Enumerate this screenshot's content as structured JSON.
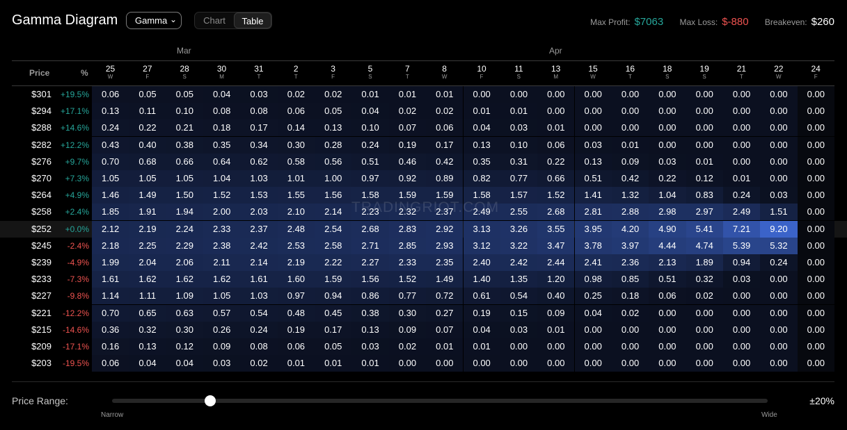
{
  "header": {
    "title": "Gamma Diagram",
    "metric_select": "Gamma",
    "view_tabs": [
      "Chart",
      "Table"
    ],
    "active_view": "Table",
    "max_profit_label": "Max Profit:",
    "max_profit": "$7063",
    "max_loss_label": "Max Loss:",
    "max_loss": "$-880",
    "breakeven_label": "Breakeven:",
    "breakeven": "$260"
  },
  "table": {
    "price_header": "Price",
    "pct_header": "%",
    "months": [
      "Mar",
      "Apr"
    ],
    "dates": [
      {
        "d": "25",
        "w": "W"
      },
      {
        "d": "27",
        "w": "F"
      },
      {
        "d": "28",
        "w": "S"
      },
      {
        "d": "30",
        "w": "M"
      },
      {
        "d": "31",
        "w": "T"
      },
      {
        "d": "2",
        "w": "T"
      },
      {
        "d": "3",
        "w": "F"
      },
      {
        "d": "5",
        "w": "S"
      },
      {
        "d": "7",
        "w": "T"
      },
      {
        "d": "8",
        "w": "W"
      },
      {
        "d": "10",
        "w": "F"
      },
      {
        "d": "11",
        "w": "S"
      },
      {
        "d": "13",
        "w": "M"
      },
      {
        "d": "15",
        "w": "W"
      },
      {
        "d": "16",
        "w": "T"
      },
      {
        "d": "18",
        "w": "S"
      },
      {
        "d": "19",
        "w": "S"
      },
      {
        "d": "21",
        "w": "T"
      },
      {
        "d": "22",
        "w": "W"
      },
      {
        "d": "24",
        "w": "F"
      }
    ],
    "current_price_row": 8,
    "rows": [
      {
        "price": "$301",
        "pct": "+19.5%",
        "values": [
          "0.06",
          "0.05",
          "0.05",
          "0.04",
          "0.03",
          "0.02",
          "0.02",
          "0.01",
          "0.01",
          "0.01",
          "0.00",
          "0.00",
          "0.00",
          "0.00",
          "0.00",
          "0.00",
          "0.00",
          "0.00",
          "0.00",
          "0.00"
        ]
      },
      {
        "price": "$294",
        "pct": "+17.1%",
        "values": [
          "0.13",
          "0.11",
          "0.10",
          "0.08",
          "0.08",
          "0.06",
          "0.05",
          "0.04",
          "0.02",
          "0.02",
          "0.01",
          "0.01",
          "0.00",
          "0.00",
          "0.00",
          "0.00",
          "0.00",
          "0.00",
          "0.00",
          "0.00"
        ]
      },
      {
        "price": "$288",
        "pct": "+14.6%",
        "values": [
          "0.24",
          "0.22",
          "0.21",
          "0.18",
          "0.17",
          "0.14",
          "0.13",
          "0.10",
          "0.07",
          "0.06",
          "0.04",
          "0.03",
          "0.01",
          "0.00",
          "0.00",
          "0.00",
          "0.00",
          "0.00",
          "0.00",
          "0.00"
        ]
      },
      {
        "price": "$282",
        "pct": "+12.2%",
        "values": [
          "0.43",
          "0.40",
          "0.38",
          "0.35",
          "0.34",
          "0.30",
          "0.28",
          "0.24",
          "0.19",
          "0.17",
          "0.13",
          "0.10",
          "0.06",
          "0.03",
          "0.01",
          "0.00",
          "0.00",
          "0.00",
          "0.00",
          "0.00"
        ]
      },
      {
        "price": "$276",
        "pct": "+9.7%",
        "values": [
          "0.70",
          "0.68",
          "0.66",
          "0.64",
          "0.62",
          "0.58",
          "0.56",
          "0.51",
          "0.46",
          "0.42",
          "0.35",
          "0.31",
          "0.22",
          "0.13",
          "0.09",
          "0.03",
          "0.01",
          "0.00",
          "0.00",
          "0.00"
        ]
      },
      {
        "price": "$270",
        "pct": "+7.3%",
        "values": [
          "1.05",
          "1.05",
          "1.05",
          "1.04",
          "1.03",
          "1.01",
          "1.00",
          "0.97",
          "0.92",
          "0.89",
          "0.82",
          "0.77",
          "0.66",
          "0.51",
          "0.42",
          "0.22",
          "0.12",
          "0.01",
          "0.00",
          "0.00"
        ]
      },
      {
        "price": "$264",
        "pct": "+4.9%",
        "values": [
          "1.46",
          "1.49",
          "1.50",
          "1.52",
          "1.53",
          "1.55",
          "1.56",
          "1.58",
          "1.59",
          "1.59",
          "1.58",
          "1.57",
          "1.52",
          "1.41",
          "1.32",
          "1.04",
          "0.83",
          "0.24",
          "0.03",
          "0.00"
        ]
      },
      {
        "price": "$258",
        "pct": "+2.4%",
        "values": [
          "1.85",
          "1.91",
          "1.94",
          "2.00",
          "2.03",
          "2.10",
          "2.14",
          "2.23",
          "2.32",
          "2.37",
          "2.49",
          "2.55",
          "2.68",
          "2.81",
          "2.88",
          "2.98",
          "2.97",
          "2.49",
          "1.51",
          "0.00"
        ]
      },
      {
        "price": "$252",
        "pct": "+0.0%",
        "values": [
          "2.12",
          "2.19",
          "2.24",
          "2.33",
          "2.37",
          "2.48",
          "2.54",
          "2.68",
          "2.83",
          "2.92",
          "3.13",
          "3.26",
          "3.55",
          "3.95",
          "4.20",
          "4.90",
          "5.41",
          "7.21",
          "9.20",
          "0.00"
        ]
      },
      {
        "price": "$245",
        "pct": "-2.4%",
        "values": [
          "2.18",
          "2.25",
          "2.29",
          "2.38",
          "2.42",
          "2.53",
          "2.58",
          "2.71",
          "2.85",
          "2.93",
          "3.12",
          "3.22",
          "3.47",
          "3.78",
          "3.97",
          "4.44",
          "4.74",
          "5.39",
          "5.32",
          "0.00"
        ]
      },
      {
        "price": "$239",
        "pct": "-4.9%",
        "values": [
          "1.99",
          "2.04",
          "2.06",
          "2.11",
          "2.14",
          "2.19",
          "2.22",
          "2.27",
          "2.33",
          "2.35",
          "2.40",
          "2.42",
          "2.44",
          "2.41",
          "2.36",
          "2.13",
          "1.89",
          "0.94",
          "0.24",
          "0.00"
        ]
      },
      {
        "price": "$233",
        "pct": "-7.3%",
        "values": [
          "1.61",
          "1.62",
          "1.62",
          "1.62",
          "1.61",
          "1.60",
          "1.59",
          "1.56",
          "1.52",
          "1.49",
          "1.40",
          "1.35",
          "1.20",
          "0.98",
          "0.85",
          "0.51",
          "0.32",
          "0.03",
          "0.00",
          "0.00"
        ]
      },
      {
        "price": "$227",
        "pct": "-9.8%",
        "values": [
          "1.14",
          "1.11",
          "1.09",
          "1.05",
          "1.03",
          "0.97",
          "0.94",
          "0.86",
          "0.77",
          "0.72",
          "0.61",
          "0.54",
          "0.40",
          "0.25",
          "0.18",
          "0.06",
          "0.02",
          "0.00",
          "0.00",
          "0.00"
        ]
      },
      {
        "price": "$221",
        "pct": "-12.2%",
        "values": [
          "0.70",
          "0.65",
          "0.63",
          "0.57",
          "0.54",
          "0.48",
          "0.45",
          "0.38",
          "0.30",
          "0.27",
          "0.19",
          "0.15",
          "0.09",
          "0.04",
          "0.02",
          "0.00",
          "0.00",
          "0.00",
          "0.00",
          "0.00"
        ]
      },
      {
        "price": "$215",
        "pct": "-14.6%",
        "values": [
          "0.36",
          "0.32",
          "0.30",
          "0.26",
          "0.24",
          "0.19",
          "0.17",
          "0.13",
          "0.09",
          "0.07",
          "0.04",
          "0.03",
          "0.01",
          "0.00",
          "0.00",
          "0.00",
          "0.00",
          "0.00",
          "0.00",
          "0.00"
        ]
      },
      {
        "price": "$209",
        "pct": "-17.1%",
        "values": [
          "0.16",
          "0.13",
          "0.12",
          "0.09",
          "0.08",
          "0.06",
          "0.05",
          "0.03",
          "0.02",
          "0.01",
          "0.01",
          "0.00",
          "0.00",
          "0.00",
          "0.00",
          "0.00",
          "0.00",
          "0.00",
          "0.00",
          "0.00"
        ]
      },
      {
        "price": "$203",
        "pct": "-19.5%",
        "values": [
          "0.06",
          "0.04",
          "0.04",
          "0.03",
          "0.02",
          "0.01",
          "0.01",
          "0.01",
          "0.00",
          "0.00",
          "0.00",
          "0.00",
          "0.00",
          "0.00",
          "0.00",
          "0.00",
          "0.00",
          "0.00",
          "0.00",
          "0.00"
        ]
      }
    ]
  },
  "watermark": "TRADINGRIOT.COM",
  "footer": {
    "price_range_label": "Price Range:",
    "narrow_label": "Narrow",
    "wide_label": "Wide",
    "range_value": "±20%",
    "slider_position": 0.15
  },
  "colors": {
    "profit": "#26a69a",
    "loss": "#ef5350",
    "heat_low": "#0b1020",
    "heat_high": "#3b63c9"
  }
}
